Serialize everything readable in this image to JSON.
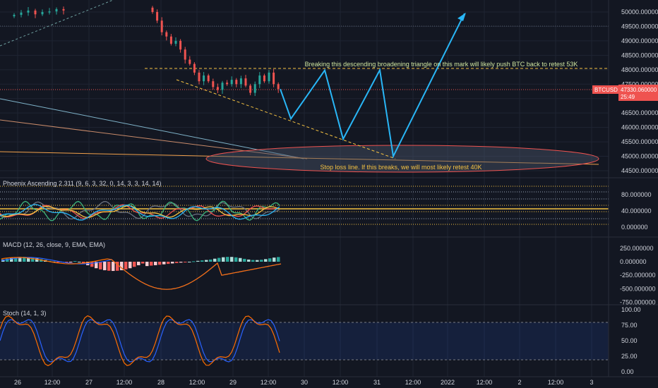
{
  "colors": {
    "background": "#131722",
    "grid": "#1f2433",
    "up": "#26a69a",
    "down": "#ef5350",
    "projection": "#29b6f6",
    "triangle": "#f5c242",
    "stop_line": "#f0a04b",
    "macd_line": "#2962ff",
    "signal_line": "#ff6d00",
    "stoch_k": "#2962ff",
    "stoch_d": "#ff6d00"
  },
  "annotations": {
    "triangle_note": "Breaking this descending broadening triangle on this mark will likely push BTC back to retest 53K",
    "stop_note": "Stop loss line. If this breaks, we will most likely retest 40K"
  },
  "price_tag": {
    "symbol": "BTCUSD",
    "price": "47330.060000",
    "countdown": "25:49"
  },
  "chart_data": [
    {
      "type": "candlestick",
      "title": "",
      "y_ticks": [
        "50000.000000",
        "49500.000000",
        "49000.000000",
        "48500.000000",
        "48000.000000",
        "47500.000000",
        "47000.000000",
        "46500.000000",
        "46000.000000",
        "45500.000000",
        "45000.000000",
        "44500.000000"
      ],
      "ylim": [
        44500,
        50200
      ],
      "x_labels": [
        "26",
        "12:00",
        "27",
        "12:00",
        "28",
        "12:00",
        "29",
        "12:00",
        "30",
        "12:00",
        "31",
        "12:00",
        "2022",
        "12:00",
        "2",
        "12:00",
        "3"
      ],
      "candles_approx": {
        "segment_1_close": [
          49900,
          49980,
          50050,
          49920,
          50000,
          50020,
          50100,
          50050
        ],
        "segment_2_close": [
          50000,
          49700,
          49300,
          49150,
          48900,
          49000,
          48700,
          48350,
          48200,
          47900,
          47600,
          47800,
          47600,
          47400,
          47300,
          47550,
          47500,
          47650,
          47500,
          47700,
          47450,
          47200,
          47500,
          47800,
          47600,
          47900,
          47500,
          47330
        ]
      },
      "projection_path": [
        {
          "x": "29 12:00",
          "y": 47330
        },
        {
          "x": "29 18:00",
          "y": 46300
        },
        {
          "x": "30 06:00",
          "y": 47980
        },
        {
          "x": "30 18:00",
          "y": 45600
        },
        {
          "x": "31 06:00",
          "y": 47990
        },
        {
          "x": "31 18:00",
          "y": 45000
        },
        {
          "x": "2022 12:00",
          "y": 49950
        }
      ],
      "levels": {
        "triangle_top": 48050,
        "current": 47330
      }
    },
    {
      "type": "line",
      "title": "Phoenix Ascending 2.311 (9, 6, 3, 32, 0, 14, 3, 3, 14, 14)",
      "y_ticks": [
        "80.000000",
        "40.000000",
        "0.000000"
      ],
      "ylim": [
        -5,
        105
      ]
    },
    {
      "type": "bar",
      "title": "MACD (12, 26, close, 9, EMA, EMA)",
      "y_ticks": [
        "250.000000",
        "0.000000",
        "-250.000000",
        "-500.000000",
        "-750.000000"
      ],
      "ylim": [
        -800,
        300
      ],
      "series": [
        {
          "name": "Histogram"
        },
        {
          "name": "MACD"
        },
        {
          "name": "Signal"
        }
      ]
    },
    {
      "type": "line",
      "title": "Stoch (14, 1, 3)",
      "y_ticks": [
        "100.00",
        "75.00",
        "50.00",
        "25.00",
        "0.00"
      ],
      "ylim": [
        0,
        100
      ],
      "bands": [
        20,
        80
      ]
    }
  ]
}
